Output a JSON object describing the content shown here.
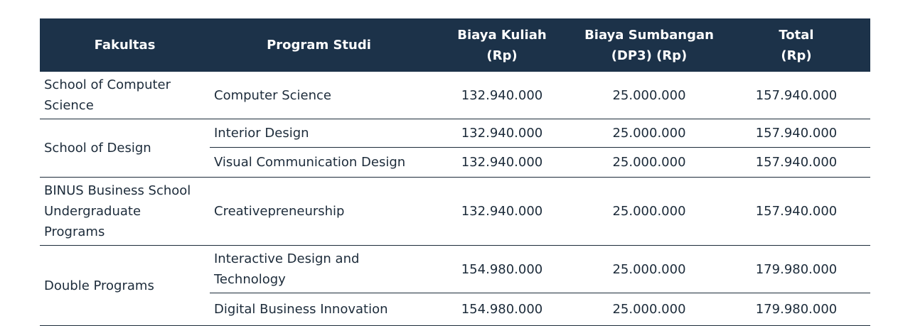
{
  "table": {
    "headers": {
      "fakultas": "Fakultas",
      "program_studi": "Program Studi",
      "biaya_kuliah_line1": "Biaya Kuliah",
      "biaya_kuliah_line2": "(Rp)",
      "biaya_sumbangan_line1": "Biaya Sumbangan",
      "biaya_sumbangan_line2": "(DP3) (Rp)",
      "total_line1": "Total",
      "total_line2": "(Rp)"
    },
    "rows": [
      {
        "fakultas": "School of Computer Science",
        "program": "Computer Science",
        "biaya_kuliah": "132.940.000",
        "biaya_sumbangan": "25.000.000",
        "total": "157.940.000"
      },
      {
        "fakultas": "School of Design",
        "program": "Interior Design",
        "biaya_kuliah": "132.940.000",
        "biaya_sumbangan": "25.000.000",
        "total": "157.940.000"
      },
      {
        "fakultas": "",
        "program": "Visual Communication Design",
        "biaya_kuliah": "132.940.000",
        "biaya_sumbangan": "25.000.000",
        "total": "157.940.000"
      },
      {
        "fakultas": "BINUS Business School Undergraduate Programs",
        "program": "Creativepreneurship",
        "biaya_kuliah": "132.940.000",
        "biaya_sumbangan": "25.000.000",
        "total": "157.940.000"
      },
      {
        "fakultas": "Double Programs",
        "program": "Interactive Design and Technology",
        "biaya_kuliah": "154.980.000",
        "biaya_sumbangan": "25.000.000",
        "total": "179.980.000"
      },
      {
        "fakultas": "",
        "program": "Digital Business Innovation",
        "biaya_kuliah": "154.980.000",
        "biaya_sumbangan": "25.000.000",
        "total": "179.980.000"
      }
    ]
  },
  "colors": {
    "header_bg": "#1c3249",
    "header_text": "#ffffff",
    "body_text": "#1c2b3a",
    "rule": "#1c2b3a"
  }
}
